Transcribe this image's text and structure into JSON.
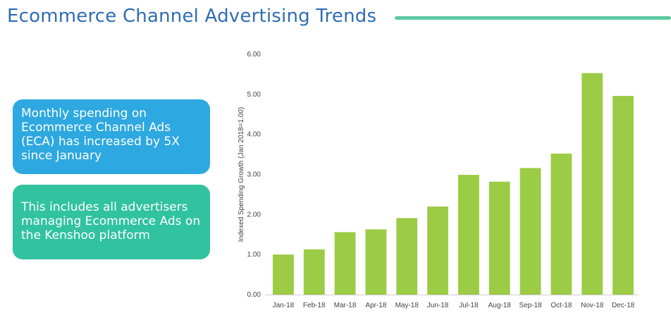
{
  "header": {
    "title": "Ecommerce Channel Advertising Trends",
    "accent_color": "#5ccaa0",
    "title_color": "#2f6db3"
  },
  "callouts": [
    {
      "text": "Monthly spending on Ecommerce Channel Ads (ECA) has increased by 5X since January",
      "color": "#2ea8e0"
    },
    {
      "text": "This includes all advertisers managing Ecommerce Ads on the Kenshoo platform",
      "color": "#31c2a0"
    }
  ],
  "chart_data": {
    "type": "bar",
    "categories": [
      "Jan-18",
      "Feb-18",
      "Mar-18",
      "Apr-18",
      "May-18",
      "Jun-18",
      "Jul-18",
      "Aug-18",
      "Sep-18",
      "Oct-18",
      "Nov-18",
      "Dec-18"
    ],
    "values": [
      1.0,
      1.13,
      1.56,
      1.63,
      1.91,
      2.2,
      2.99,
      2.82,
      3.16,
      3.52,
      5.53,
      4.96
    ],
    "ylabel": "Indexed Spending Growth (Jan 2018=1.00)",
    "ylim": [
      0,
      6
    ],
    "yticks": [
      "0.00",
      "1.00",
      "2.00",
      "3.00",
      "4.00",
      "5.00",
      "6.00"
    ],
    "grid": false,
    "bar_color": "#9ccb45"
  }
}
